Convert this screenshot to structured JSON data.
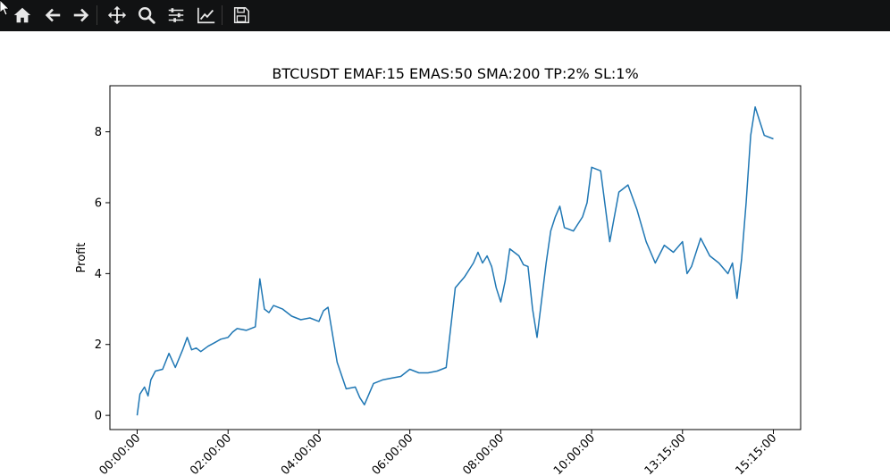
{
  "toolbar": {
    "buttons": [
      {
        "name": "home-icon"
      },
      {
        "name": "back-arrow-icon"
      },
      {
        "name": "forward-arrow-icon"
      },
      {
        "name": "pan-move-icon"
      },
      {
        "name": "zoom-magnifier-icon"
      },
      {
        "name": "configure-subplots-icon"
      },
      {
        "name": "edit-axis-line-icon"
      },
      {
        "name": "save-floppy-icon"
      }
    ]
  },
  "chart_data": {
    "type": "line",
    "title": "BTCUSDT EMAF:15 EMAS:50 SMA:200 TP:2% SL:1%",
    "xlabel": "",
    "ylabel": "Profit",
    "ylim": [
      -0.4,
      9.3
    ],
    "yticks": [
      0,
      2,
      4,
      6,
      8
    ],
    "xlim": [
      -0.3,
      7.3
    ],
    "xticks": [
      {
        "pos": 0,
        "label": "00:00:00"
      },
      {
        "pos": 1,
        "label": "02:00:00"
      },
      {
        "pos": 2,
        "label": "04:00:00"
      },
      {
        "pos": 3,
        "label": "06:00:00"
      },
      {
        "pos": 4,
        "label": "08:00:00"
      },
      {
        "pos": 5,
        "label": "10:00:00"
      },
      {
        "pos": 6,
        "label": "13:15:00"
      },
      {
        "pos": 7,
        "label": "15:15:00"
      }
    ],
    "grid": false,
    "color": "#1f77b4",
    "series": [
      {
        "x": [
          0,
          0.03,
          0.08,
          0.12,
          0.15,
          0.2,
          0.28,
          0.35,
          0.42,
          0.5,
          0.55,
          0.6,
          0.65,
          0.7,
          0.78,
          0.85,
          0.92,
          1.0,
          1.05,
          1.1,
          1.2,
          1.3,
          1.35,
          1.4,
          1.45,
          1.5,
          1.6,
          1.7,
          1.8,
          1.9,
          2.0,
          2.05,
          2.1,
          2.2,
          2.3,
          2.4,
          2.45,
          2.5,
          2.6,
          2.7,
          2.8,
          2.9,
          3.0,
          3.1,
          3.2,
          3.3,
          3.4,
          3.5,
          3.6,
          3.7,
          3.75,
          3.8,
          3.85,
          3.9,
          3.95,
          4.0,
          4.05,
          4.1,
          4.2,
          4.25,
          4.3,
          4.35,
          4.4,
          4.5,
          4.55,
          4.6,
          4.65,
          4.7,
          4.8,
          4.9,
          4.95,
          5.0,
          5.1,
          5.2,
          5.3,
          5.4,
          5.5,
          5.6,
          5.7,
          5.8,
          5.9,
          6.0,
          6.05,
          6.1,
          6.2,
          6.3,
          6.4,
          6.5,
          6.55,
          6.6,
          6.65,
          6.7,
          6.75,
          6.8,
          6.9,
          7.0
        ],
        "y": [
          0.0,
          0.6,
          0.8,
          0.55,
          1.0,
          1.25,
          1.3,
          1.75,
          1.35,
          1.85,
          2.2,
          1.85,
          1.9,
          1.8,
          1.95,
          2.05,
          2.15,
          2.2,
          2.35,
          2.45,
          2.4,
          2.5,
          3.85,
          3.0,
          2.9,
          3.1,
          3.0,
          2.8,
          2.7,
          2.75,
          2.65,
          2.95,
          3.05,
          1.5,
          0.75,
          0.8,
          0.5,
          0.3,
          0.9,
          1.0,
          1.05,
          1.1,
          1.3,
          1.2,
          1.2,
          1.25,
          1.35,
          3.6,
          3.9,
          4.3,
          4.6,
          4.3,
          4.5,
          4.2,
          3.6,
          3.2,
          3.8,
          4.7,
          4.5,
          4.25,
          4.2,
          3.0,
          2.2,
          4.3,
          5.2,
          5.6,
          5.9,
          5.3,
          5.2,
          5.6,
          6.0,
          7.0,
          6.9,
          4.9,
          6.3,
          6.5,
          5.8,
          4.9,
          4.3,
          4.8,
          4.6,
          4.9,
          4.0,
          4.2,
          5.0,
          4.5,
          4.3,
          4.0,
          4.3,
          3.3,
          4.4,
          6.0,
          7.9,
          8.7,
          7.9,
          7.8
        ]
      }
    ]
  }
}
